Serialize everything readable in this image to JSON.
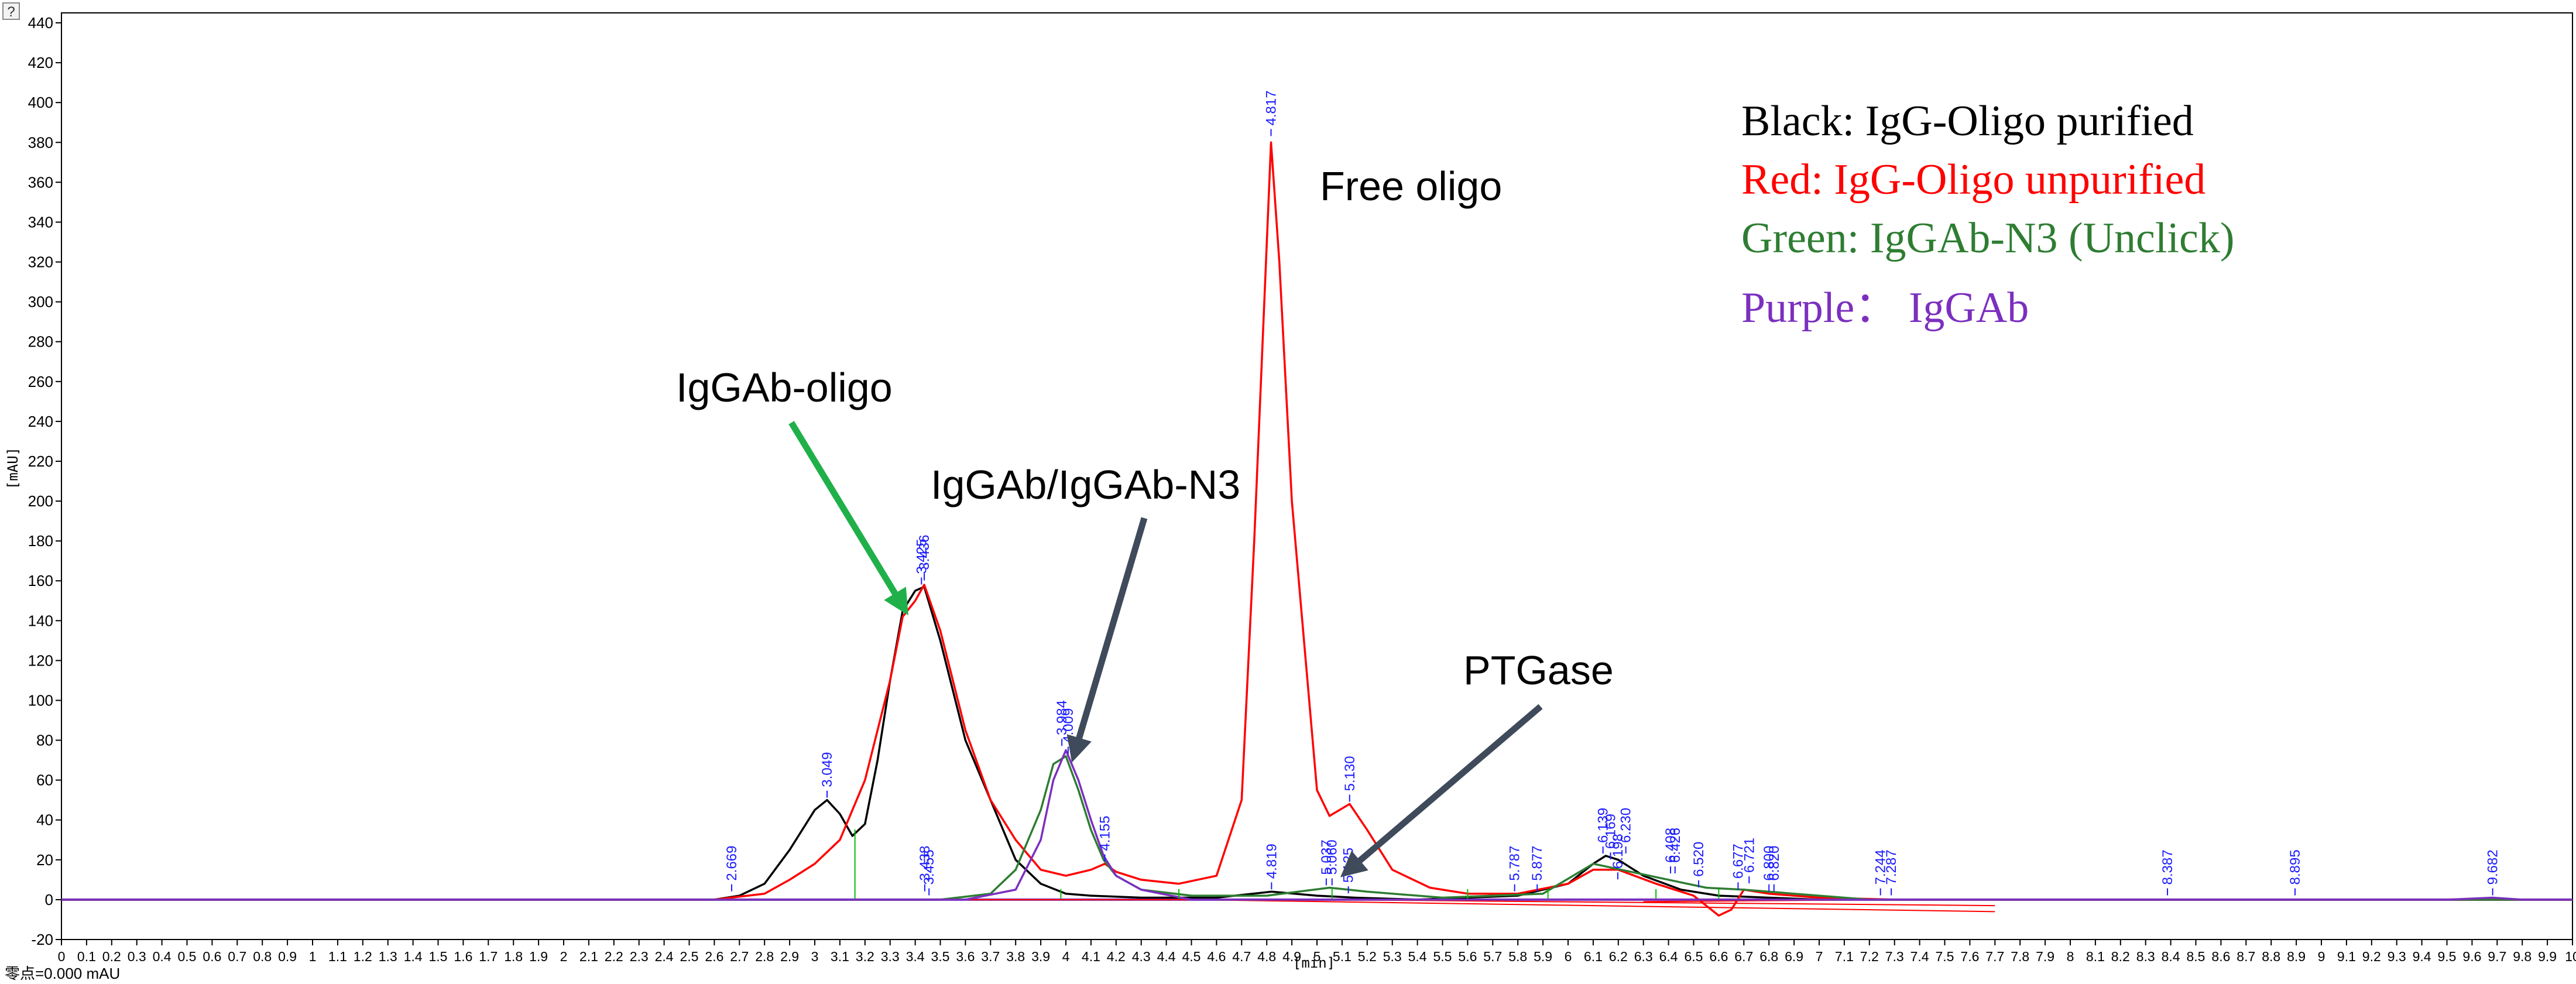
{
  "corner_button": "?",
  "footer": "零点=0.000 mAU",
  "legend": [
    {
      "text": "Black: IgG-Oligo purified",
      "color": "#000000"
    },
    {
      "text": "Red:  IgG-Oligo unpurified",
      "color": "#ff0000"
    },
    {
      "text": "Green:  IgGAb-N3 (Unclick)",
      "color": "#2e7d32"
    },
    {
      "text": "Purple：  IgGAb",
      "color": "#7b2fbf"
    }
  ],
  "annotations": {
    "free_oligo": "Free oligo",
    "igg_oligo": "IgGAb-oligo",
    "igg_n3": "IgGAb/IgGAb-N3",
    "ptgase": "PTGase"
  },
  "colors": {
    "arrow_green": "#20b04a",
    "arrow_slate": "#3f4a5a",
    "peak_label": "#1a1aff",
    "baseline_marker": "#00c000"
  },
  "chart_data": {
    "type": "line",
    "xlabel": "[min]",
    "ylabel": "[mAU]",
    "xlim": [
      0,
      10
    ],
    "ylim": [
      -20,
      445
    ],
    "y_ticks": [
      -20,
      0,
      20,
      40,
      60,
      80,
      100,
      120,
      140,
      160,
      180,
      200,
      220,
      240,
      260,
      280,
      300,
      320,
      340,
      360,
      380,
      400,
      420,
      440
    ],
    "x_ticks": [
      0,
      0.1,
      0.2,
      0.3,
      0.4,
      0.5,
      0.6,
      0.7,
      0.8,
      0.9,
      1,
      1.1,
      1.2,
      1.3,
      1.4,
      1.5,
      1.6,
      1.7,
      1.8,
      1.9,
      2,
      2.1,
      2.2,
      2.3,
      2.4,
      2.5,
      2.6,
      2.7,
      2.8,
      2.9,
      3,
      3.1,
      3.2,
      3.3,
      3.4,
      3.5,
      3.6,
      3.7,
      3.8,
      3.9,
      4,
      4.1,
      4.2,
      4.3,
      4.4,
      4.5,
      4.6,
      4.7,
      4.8,
      4.9,
      5,
      5.1,
      5.2,
      5.3,
      5.4,
      5.5,
      5.6,
      5.7,
      5.8,
      5.9,
      6,
      6.1,
      6.2,
      6.3,
      6.4,
      6.5,
      6.6,
      6.7,
      6.8,
      6.9,
      7,
      7.1,
      7.2,
      7.3,
      7.4,
      7.5,
      7.6,
      7.7,
      7.8,
      7.9,
      8,
      8.1,
      8.2,
      8.3,
      8.4,
      8.5,
      8.6,
      8.7,
      8.8,
      8.9,
      9,
      9.1,
      9.2,
      9.3,
      9.4,
      9.5,
      9.6,
      9.7,
      9.8,
      9.9,
      10
    ],
    "grid": false,
    "series": [
      {
        "name": "Black: IgG-Oligo purified",
        "color": "#000000",
        "x": [
          0,
          2.6,
          2.7,
          2.8,
          2.9,
          3.0,
          3.049,
          3.1,
          3.15,
          3.2,
          3.25,
          3.3,
          3.35,
          3.4,
          3.436,
          3.5,
          3.6,
          3.7,
          3.8,
          3.9,
          4.0,
          4.1,
          4.3,
          4.6,
          4.819,
          5.0,
          5.15,
          5.4,
          5.8,
          6.0,
          6.1,
          6.15,
          6.2,
          6.3,
          6.45,
          6.6,
          6.8,
          7.0,
          7.3,
          7.6,
          10
        ],
        "y": [
          0,
          0,
          2,
          8,
          25,
          45,
          50,
          43,
          32,
          38,
          70,
          110,
          145,
          155,
          157,
          130,
          80,
          50,
          20,
          8,
          3,
          2,
          1,
          1,
          4,
          2,
          1,
          0,
          2,
          8,
          18,
          22,
          20,
          12,
          5,
          2,
          1,
          0,
          0,
          0,
          0
        ]
      },
      {
        "name": "Red: IgG-Oligo unpurified",
        "color": "#ff0000",
        "x": [
          0,
          2.6,
          2.8,
          2.9,
          3.0,
          3.1,
          3.2,
          3.3,
          3.35,
          3.4,
          3.436,
          3.5,
          3.6,
          3.7,
          3.8,
          3.9,
          4.0,
          4.1,
          4.155,
          4.2,
          4.3,
          4.45,
          4.6,
          4.7,
          4.75,
          4.817,
          4.85,
          4.9,
          5.0,
          5.05,
          5.13,
          5.2,
          5.3,
          5.45,
          5.6,
          5.8,
          6.0,
          6.1,
          6.2,
          6.35,
          6.5,
          6.6,
          6.65,
          6.7,
          6.8,
          7.0,
          7.3,
          10
        ],
        "y": [
          0,
          0,
          3,
          10,
          18,
          30,
          60,
          110,
          142,
          150,
          158,
          135,
          85,
          50,
          30,
          15,
          12,
          15,
          18,
          14,
          10,
          8,
          12,
          50,
          180,
          380,
          320,
          200,
          55,
          42,
          48,
          35,
          15,
          6,
          3,
          3,
          8,
          15,
          15,
          8,
          2,
          -8,
          -5,
          5,
          3,
          1,
          0,
          0
        ]
      },
      {
        "name": "Green: IgGAb-N3 (Unclick)",
        "color": "#2e7d32",
        "x": [
          0,
          3.5,
          3.7,
          3.8,
          3.9,
          3.95,
          4.0,
          4.05,
          4.1,
          4.15,
          4.2,
          4.3,
          4.5,
          4.8,
          5.05,
          5.2,
          5.5,
          5.9,
          6.1,
          6.25,
          6.4,
          6.55,
          6.7,
          6.9,
          7.2,
          10
        ],
        "y": [
          0,
          0,
          3,
          15,
          45,
          68,
          72,
          55,
          35,
          20,
          12,
          5,
          2,
          2,
          6,
          4,
          1,
          3,
          18,
          14,
          10,
          6,
          5,
          3,
          0,
          0
        ]
      },
      {
        "name": "Purple：IgGAb",
        "color": "#7b2fbf",
        "x": [
          0,
          3.6,
          3.8,
          3.9,
          3.95,
          4.0,
          4.05,
          4.1,
          4.15,
          4.2,
          4.3,
          4.5,
          9.5,
          9.682,
          9.8,
          10
        ],
        "y": [
          0,
          0,
          5,
          30,
          60,
          75,
          60,
          40,
          22,
          12,
          5,
          0,
          0,
          1,
          0,
          0
        ]
      }
    ],
    "peak_labels": [
      {
        "x": 2.669,
        "y": 3,
        "text": "2.669"
      },
      {
        "x": 3.049,
        "y": 50,
        "text": "3.049"
      },
      {
        "x": 3.425,
        "y": 157,
        "text": "3.425"
      },
      {
        "x": 3.436,
        "y": 159,
        "text": "3.436"
      },
      {
        "x": 3.438,
        "y": 3,
        "text": "3.438"
      },
      {
        "x": 3.455,
        "y": 1,
        "text": "3.455"
      },
      {
        "x": 3.984,
        "y": 76,
        "text": "3.984"
      },
      {
        "x": 4.009,
        "y": 72,
        "text": "4.009"
      },
      {
        "x": 4.155,
        "y": 18,
        "text": "4.155"
      },
      {
        "x": 4.817,
        "y": 382,
        "text": "4.817"
      },
      {
        "x": 4.819,
        "y": 4,
        "text": "4.819"
      },
      {
        "x": 5.037,
        "y": 6,
        "text": "5.037"
      },
      {
        "x": 5.06,
        "y": 6,
        "text": "5.060"
      },
      {
        "x": 5.125,
        "y": 2,
        "text": "5.125"
      },
      {
        "x": 5.13,
        "y": 48,
        "text": "5.130"
      },
      {
        "x": 5.787,
        "y": 3,
        "text": "5.787"
      },
      {
        "x": 5.877,
        "y": 3,
        "text": "5.877"
      },
      {
        "x": 6.139,
        "y": 22,
        "text": "6.139"
      },
      {
        "x": 6.169,
        "y": 19,
        "text": "6.169"
      },
      {
        "x": 6.198,
        "y": 9,
        "text": "6.198"
      },
      {
        "x": 6.23,
        "y": 22,
        "text": "6.230"
      },
      {
        "x": 6.408,
        "y": 12,
        "text": "6.408"
      },
      {
        "x": 6.426,
        "y": 12,
        "text": "6.426"
      },
      {
        "x": 6.52,
        "y": 5,
        "text": "6.520"
      },
      {
        "x": 6.677,
        "y": 4,
        "text": "6.677"
      },
      {
        "x": 6.721,
        "y": 7,
        "text": "6.721"
      },
      {
        "x": 6.8,
        "y": 3,
        "text": "6.800"
      },
      {
        "x": 6.82,
        "y": 3,
        "text": "6.820"
      },
      {
        "x": 7.244,
        "y": 1,
        "text": "7.244"
      },
      {
        "x": 7.287,
        "y": 1,
        "text": "7.287"
      },
      {
        "x": 8.387,
        "y": 1,
        "text": "8.387"
      },
      {
        "x": 8.895,
        "y": 1,
        "text": "8.895"
      },
      {
        "x": 9.682,
        "y": 1,
        "text": "9.682"
      }
    ],
    "baseline_markers_x": [
      3.16,
      3.98,
      4.45,
      5.06,
      5.6,
      5.92,
      6.35,
      6.6
    ],
    "skim_baselines": [
      {
        "x": [
          2.6,
          4.5
        ],
        "y": [
          0,
          0
        ]
      },
      {
        "x": [
          4.5,
          7.7
        ],
        "y": [
          0,
          -6
        ]
      },
      {
        "x": [
          5.05,
          7.7
        ],
        "y": [
          0,
          -3
        ]
      },
      {
        "x": [
          6.3,
          7.3
        ],
        "y": [
          -1,
          0
        ]
      }
    ]
  }
}
